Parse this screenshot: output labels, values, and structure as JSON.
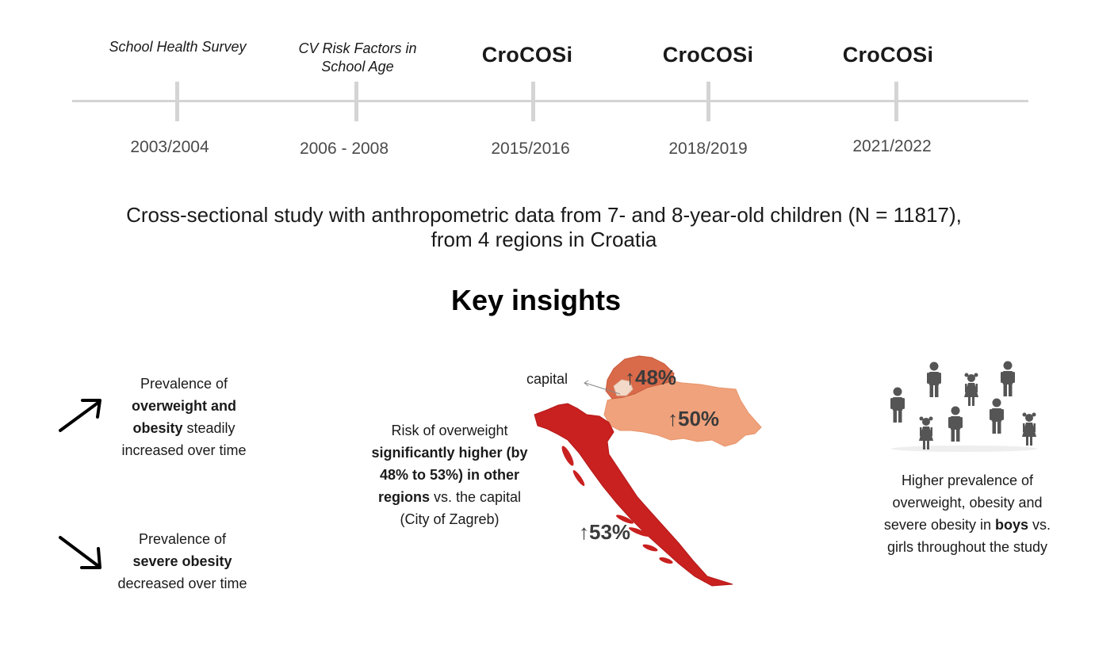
{
  "timeline": {
    "events": [
      {
        "label_type": "italic",
        "label": "School Health Survey",
        "year": "2003/2004"
      },
      {
        "label_type": "italic",
        "label": "CV Risk Factors in School Age",
        "year": "2006 - 2008"
      },
      {
        "label_type": "logo",
        "label": "CroCOSi",
        "year": "2015/2016"
      },
      {
        "label_type": "logo",
        "label": "CroCOSi",
        "year": "2018/2019"
      },
      {
        "label_type": "logo",
        "label": "CroCOSi",
        "year": "2021/2022"
      }
    ]
  },
  "description": {
    "line1": "Cross-sectional study with anthropometric data from 7- and 8-year-old children (N = 11817),",
    "line2": "from 4 regions in Croatia"
  },
  "key_insights": {
    "title": "Key insights",
    "overweight_trend": {
      "pre": "Prevalence of",
      "bold": "overweight and obesity",
      "post": "steadily increased over time",
      "icon": "arrow-up-right-icon"
    },
    "severe_trend": {
      "pre": "Prevalence of",
      "bold": "severe obesity",
      "post": "decreased over time",
      "icon": "arrow-down-right-icon"
    },
    "regional_risk": {
      "pre": "Risk of overweight",
      "bold": "significantly higher (by 48% to 53%) in other regions",
      "post": "vs. the capital (City of Zagreb)"
    },
    "map": {
      "capital_label": "capital",
      "regions": [
        {
          "name": "north",
          "value": "48%",
          "color": "#d96a4a"
        },
        {
          "name": "east",
          "value": "50%",
          "color": "#f0a27c"
        },
        {
          "name": "coast",
          "value": "53%",
          "color": "#c92020"
        }
      ],
      "capital_color": "#f3d9c8",
      "arrow_glyph": "↑"
    },
    "sex_difference": {
      "pre": "Higher prevalence of overweight, obesity and severe obesity in",
      "bold": "boys",
      "post": "vs. girls throughout the study",
      "icon": "children-group-icon"
    }
  }
}
